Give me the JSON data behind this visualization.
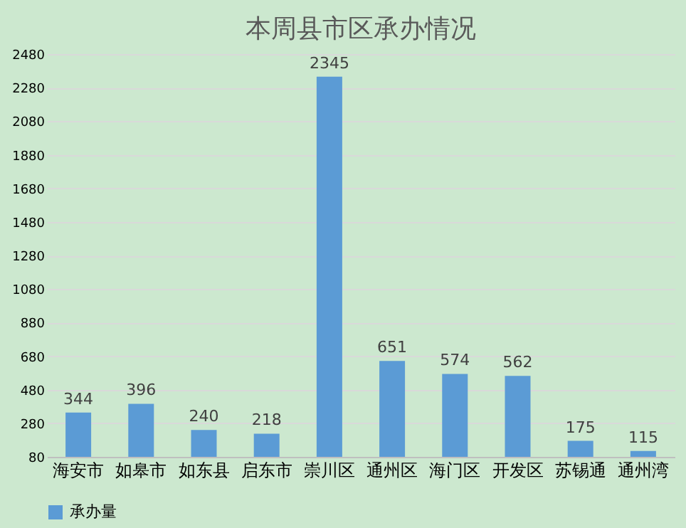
{
  "chart_data": {
    "type": "bar",
    "title": "本周县市区承办情况",
    "categories": [
      "海安市",
      "如皋市",
      "如东县",
      "启东市",
      "崇川区",
      "通州区",
      "海门区",
      "开发区",
      "苏锡通",
      "通州湾"
    ],
    "series": [
      {
        "name": "承办量",
        "color": "#5b9bd5",
        "values": [
          344,
          396,
          240,
          218,
          2345,
          651,
          574,
          562,
          175,
          115
        ]
      }
    ],
    "ylim": [
      80,
      2480
    ],
    "yticks": [
      80,
      280,
      480,
      680,
      880,
      1080,
      1280,
      1480,
      1680,
      1880,
      2080,
      2280,
      2480
    ],
    "grid": "y",
    "legend": "bottom",
    "data_labels": true
  }
}
